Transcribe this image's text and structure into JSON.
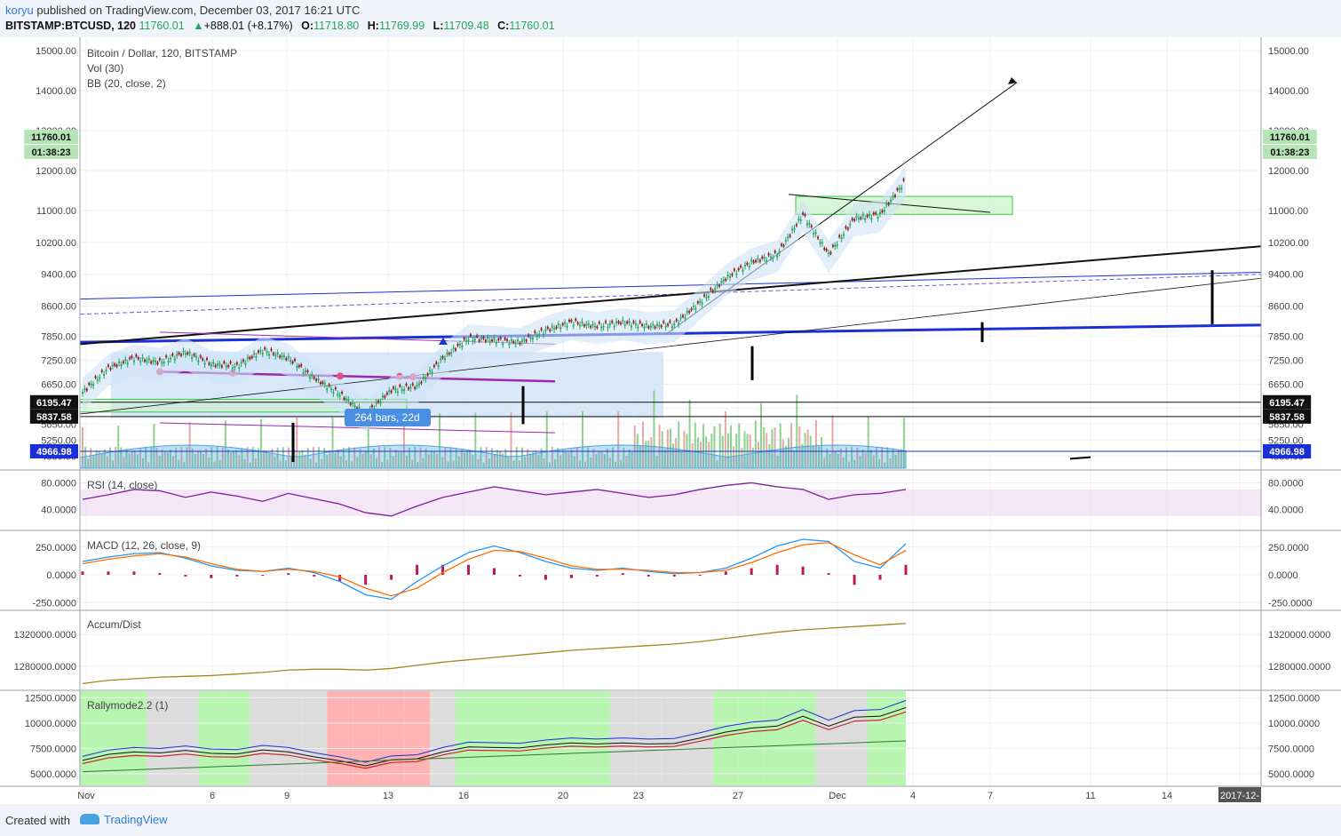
{
  "header": {
    "author": "koryu",
    "published_text": " published on TradingView.com, December 03, 2017 16:21 UTC",
    "symbol": "BITSTAMP:BTCUSD, 120",
    "last": "11760.01",
    "change": "+888.01 (+8.17%)",
    "o_label": "O:",
    "o_value": "11718.80",
    "h_label": "H:",
    "h_value": "11769.99",
    "l_label": "L:",
    "l_value": "11709.48",
    "c_label": "C:",
    "c_value": "11760.01"
  },
  "footer": {
    "created_with": "Created with",
    "brand": "TradingView"
  },
  "icons": {
    "brand_logo": "tradingview-cloud-icon",
    "change_arrow": "triangle-up-icon"
  },
  "colors": {
    "up": "#26a65b",
    "down": "#8b1a1a",
    "blue_line": "#1b2fd6",
    "purple": "#9c27b0",
    "bb_fill": "#cfe2f7",
    "vol_up": "#8fd18f",
    "vol_down": "#e8a7a7",
    "rsi": "#7b1fa2",
    "macd": "#2196f3",
    "signal": "#ff6d00",
    "accum": "#9e8a1e",
    "rally_green": "#b7f5b1",
    "rally_red": "#ffb3b3",
    "rally_gray": "#dcdcdc",
    "rally_cyan": "#bff3ff"
  },
  "chart_data": [
    {
      "type": "candlestick",
      "title": "Bitcoin / Dollar, 120, BITSTAMP",
      "indicators": [
        "Vol (30)",
        "BB (20, close, 2)"
      ],
      "x_ticks": [
        "Nov",
        "6",
        "9",
        "13",
        "16",
        "20",
        "23",
        "27",
        "Dec",
        "4",
        "7",
        "11",
        "14",
        "2017-12-"
      ],
      "y_ticks": [
        "15000.00",
        "14000.00",
        "13000.00",
        "12000.00",
        "11000.00",
        "10200.00",
        "9400.00",
        "8600.00",
        "7850.00",
        "7250.00",
        "6650.00",
        "6050.00",
        "5650.00",
        "5250.00",
        "4850.00"
      ],
      "ylim": [
        4700,
        15200
      ],
      "price_labels": {
        "last": "11760.01",
        "countdown": "01:38:23",
        "level1": "6195.47",
        "level2": "5837.58",
        "level3": "4966.98"
      },
      "annotation": "264 bars, 22d",
      "close_path": [
        [
          "Nov 1",
          6450
        ],
        [
          "Nov 2",
          7050
        ],
        [
          "Nov 3",
          7300
        ],
        [
          "Nov 4",
          7200
        ],
        [
          "Nov 5",
          7450
        ],
        [
          "Nov 6",
          7150
        ],
        [
          "Nov 7",
          7100
        ],
        [
          "Nov 8",
          7500
        ],
        [
          "Nov 9",
          7300
        ],
        [
          "Nov 10",
          6800
        ],
        [
          "Nov 11",
          6400
        ],
        [
          "Nov 12",
          5900
        ],
        [
          "Nov 13",
          6500
        ],
        [
          "Nov 14",
          6600
        ],
        [
          "Nov 15",
          7300
        ],
        [
          "Nov 16",
          7800
        ],
        [
          "Nov 17",
          7750
        ],
        [
          "Nov 18",
          7700
        ],
        [
          "Nov 19",
          8000
        ],
        [
          "Nov 20",
          8200
        ],
        [
          "Nov 21",
          8100
        ],
        [
          "Nov 22",
          8200
        ],
        [
          "Nov 23",
          8100
        ],
        [
          "Nov 24",
          8150
        ],
        [
          "Nov 25",
          8700
        ],
        [
          "Nov 26",
          9300
        ],
        [
          "Nov 27",
          9700
        ],
        [
          "Nov 28",
          9900
        ],
        [
          "Nov 29",
          10900
        ],
        [
          "Nov 30",
          9900
        ],
        [
          "Dec 1",
          10800
        ],
        [
          "Dec 2",
          10900
        ],
        [
          "Dec 3",
          11760
        ]
      ]
    },
    {
      "type": "line",
      "title": "RSI (14, close)",
      "y_ticks": [
        "80.0000",
        "40.0000"
      ],
      "ylim": [
        15,
        90
      ],
      "band": [
        30,
        70
      ],
      "values": [
        55,
        62,
        70,
        68,
        58,
        66,
        60,
        52,
        64,
        56,
        48,
        35,
        30,
        45,
        58,
        66,
        74,
        68,
        62,
        66,
        70,
        64,
        58,
        62,
        70,
        76,
        80,
        74,
        70,
        55,
        62,
        64,
        70
      ]
    },
    {
      "type": "line",
      "title": "MACD (12, 26, close, 9)",
      "y_ticks": [
        "250.0000",
        "0.0000",
        "-250.0000"
      ],
      "ylim": [
        -280,
        360
      ],
      "macd": [
        120,
        160,
        190,
        200,
        150,
        80,
        40,
        30,
        60,
        20,
        -60,
        -180,
        -220,
        -60,
        80,
        200,
        260,
        200,
        120,
        60,
        40,
        60,
        30,
        10,
        20,
        60,
        150,
        260,
        320,
        300,
        120,
        60,
        280
      ],
      "signal": [
        100,
        140,
        170,
        190,
        160,
        100,
        50,
        30,
        50,
        30,
        -20,
        -120,
        -190,
        -120,
        20,
        140,
        220,
        210,
        150,
        80,
        50,
        50,
        40,
        20,
        20,
        40,
        110,
        200,
        270,
        290,
        180,
        90,
        220
      ]
    },
    {
      "type": "line",
      "title": "Accum/Dist",
      "y_ticks": [
        "1320000.0000",
        "1280000.0000"
      ],
      "ylim": [
        1255000,
        1345000
      ],
      "values": [
        1258000,
        1262000,
        1264000,
        1266000,
        1267000,
        1268000,
        1270000,
        1272000,
        1275000,
        1276000,
        1276000,
        1275000,
        1277000,
        1281000,
        1285000,
        1288000,
        1291000,
        1294000,
        1297000,
        1300000,
        1302000,
        1304000,
        1306000,
        1308000,
        1311000,
        1315000,
        1319000,
        1323000,
        1326000,
        1328000,
        1330000,
        1332000,
        1334000
      ]
    },
    {
      "type": "line",
      "title": "Rallymode2.2 (1)",
      "y_ticks": [
        "12500.0000",
        "10000.0000",
        "7500.0000",
        "5000.0000"
      ],
      "ylim": [
        4200,
        12800
      ],
      "regimes": [
        "green",
        "green",
        "green",
        "gray",
        "gray",
        "green",
        "green",
        "gray",
        "gray",
        "gray",
        "red",
        "red",
        "red",
        "red",
        "gray",
        "green",
        "green",
        "green",
        "green",
        "green",
        "green",
        "gray",
        "gray",
        "gray",
        "gray",
        "green",
        "green",
        "green",
        "green",
        "gray",
        "gray",
        "green",
        "green"
      ]
    }
  ]
}
